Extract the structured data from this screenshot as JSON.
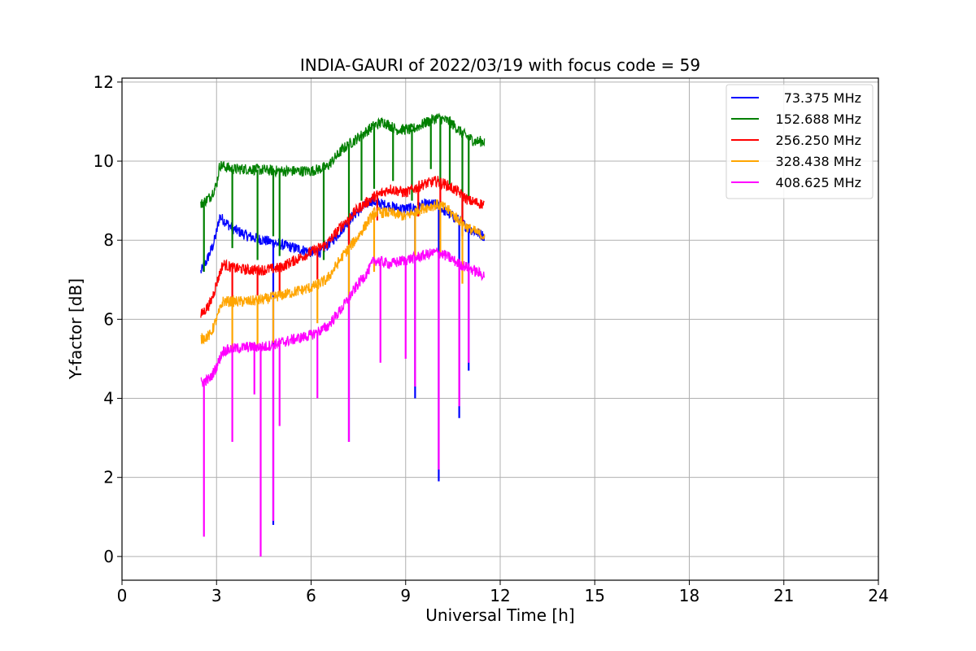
{
  "chart_data": {
    "type": "line",
    "title": "INDIA-GAURI of 2022/03/19 with focus code = 59",
    "xlabel": "Universal Time [h]",
    "ylabel": "Y-factor [dB]",
    "xlim": [
      0,
      24
    ],
    "ylim": [
      -0.6,
      12.1
    ],
    "xticks": [
      0,
      3,
      6,
      9,
      12,
      15,
      18,
      21,
      24
    ],
    "yticks": [
      0,
      2,
      4,
      6,
      8,
      10,
      12
    ],
    "grid": true,
    "legend_position": "top-right",
    "series": [
      {
        "name": "  73.375 MHz",
        "color": "#0000ff",
        "x": [
          2.5,
          2.7,
          2.9,
          3.0,
          3.1,
          3.5,
          4.0,
          4.5,
          5.0,
          5.5,
          6.0,
          6.3,
          6.8,
          7.3,
          7.6,
          7.9,
          8.3,
          8.8,
          9.2,
          9.6,
          10.0,
          10.3,
          10.7,
          11.0,
          11.5
        ],
        "y": [
          7.2,
          7.5,
          7.9,
          8.2,
          8.6,
          8.3,
          8.1,
          8.0,
          7.9,
          7.8,
          7.7,
          7.7,
          8.1,
          8.6,
          8.8,
          9.0,
          8.9,
          8.8,
          8.8,
          8.9,
          8.9,
          8.7,
          8.5,
          8.3,
          8.1
        ],
        "spikes": [
          [
            4.8,
            0.8
          ],
          [
            7.2,
            2.9
          ],
          [
            9.3,
            4.0
          ],
          [
            10.05,
            1.9
          ],
          [
            10.7,
            3.5
          ],
          [
            11.0,
            4.7
          ]
        ]
      },
      {
        "name": "152.688 MHz",
        "color": "#008000",
        "x": [
          2.5,
          2.8,
          3.0,
          3.1,
          3.5,
          4.0,
          5.0,
          6.0,
          6.5,
          7.0,
          7.5,
          8.0,
          8.3,
          8.7,
          9.2,
          9.7,
          10.0,
          10.4,
          10.8,
          11.2,
          11.5
        ],
        "y": [
          8.9,
          9.1,
          9.4,
          9.9,
          9.8,
          9.8,
          9.75,
          9.75,
          9.85,
          10.3,
          10.6,
          10.9,
          11.0,
          10.8,
          10.8,
          11.0,
          11.1,
          11.0,
          10.7,
          10.5,
          10.5
        ],
        "spikes": [
          [
            2.6,
            7.2
          ],
          [
            3.5,
            7.8
          ],
          [
            4.3,
            7.5
          ],
          [
            4.8,
            8.1
          ],
          [
            5.0,
            7.6
          ],
          [
            6.4,
            7.5
          ],
          [
            7.2,
            7.9
          ],
          [
            7.6,
            9.0
          ],
          [
            8.0,
            9.3
          ],
          [
            8.6,
            9.5
          ],
          [
            9.2,
            9.0
          ],
          [
            9.8,
            9.8
          ],
          [
            10.1,
            9.3
          ],
          [
            10.4,
            9.4
          ],
          [
            10.8,
            8.4
          ],
          [
            11.0,
            9.1
          ]
        ]
      },
      {
        "name": "256.250 MHz",
        "color": "#ff0000",
        "x": [
          2.5,
          2.8,
          3.0,
          3.2,
          3.5,
          4.0,
          4.5,
          5.0,
          5.5,
          6.0,
          6.5,
          7.0,
          7.5,
          8.0,
          8.5,
          9.0,
          9.5,
          10.0,
          10.3,
          10.7,
          11.0,
          11.5
        ],
        "y": [
          6.1,
          6.4,
          6.9,
          7.4,
          7.3,
          7.25,
          7.25,
          7.3,
          7.5,
          7.7,
          7.9,
          8.4,
          8.8,
          9.1,
          9.3,
          9.2,
          9.4,
          9.5,
          9.4,
          9.2,
          9.0,
          8.9
        ],
        "spikes": [
          [
            3.5,
            6.5
          ],
          [
            4.3,
            6.6
          ],
          [
            5.0,
            6.6
          ],
          [
            6.2,
            7.0
          ],
          [
            7.2,
            7.8
          ],
          [
            8.1,
            8.5
          ],
          [
            9.4,
            8.6
          ],
          [
            10.1,
            8.9
          ],
          [
            10.8,
            8.1
          ]
        ]
      },
      {
        "name": "328.438 MHz",
        "color": "#ffa500",
        "x": [
          2.5,
          2.8,
          3.0,
          3.2,
          3.5,
          4.0,
          4.5,
          5.0,
          5.5,
          6.0,
          6.5,
          7.0,
          7.5,
          8.0,
          8.5,
          9.0,
          9.5,
          10.0,
          10.3,
          10.7,
          11.0,
          11.5
        ],
        "y": [
          5.5,
          5.6,
          6.0,
          6.45,
          6.45,
          6.45,
          6.5,
          6.6,
          6.7,
          6.8,
          7.0,
          7.6,
          8.1,
          8.7,
          8.7,
          8.6,
          8.8,
          8.9,
          8.8,
          8.5,
          8.3,
          8.1
        ],
        "spikes": [
          [
            3.5,
            5.2
          ],
          [
            4.3,
            5.3
          ],
          [
            4.8,
            5.4
          ],
          [
            6.2,
            5.9
          ],
          [
            7.2,
            6.3
          ],
          [
            8.0,
            7.2
          ],
          [
            9.3,
            7.5
          ],
          [
            10.1,
            7.6
          ],
          [
            10.8,
            6.9
          ]
        ]
      },
      {
        "name": "408.625 MHz",
        "color": "#ff00ff",
        "x": [
          2.5,
          2.8,
          3.0,
          3.2,
          3.5,
          4.0,
          4.5,
          5.0,
          5.5,
          6.0,
          6.5,
          7.0,
          7.5,
          7.8,
          8.0,
          8.5,
          9.0,
          9.5,
          10.0,
          10.3,
          10.7,
          11.0,
          11.5
        ],
        "y": [
          4.4,
          4.5,
          4.8,
          5.2,
          5.25,
          5.3,
          5.3,
          5.4,
          5.5,
          5.6,
          5.8,
          6.3,
          6.9,
          7.2,
          7.5,
          7.4,
          7.5,
          7.6,
          7.7,
          7.6,
          7.4,
          7.3,
          7.1
        ],
        "spikes": [
          [
            2.6,
            0.5
          ],
          [
            3.5,
            2.9
          ],
          [
            4.2,
            4.1
          ],
          [
            4.4,
            0.0
          ],
          [
            4.8,
            0.9
          ],
          [
            5.0,
            3.3
          ],
          [
            6.2,
            4.0
          ],
          [
            7.2,
            2.9
          ],
          [
            8.2,
            4.9
          ],
          [
            9.0,
            5.0
          ],
          [
            9.3,
            4.3
          ],
          [
            10.05,
            2.2
          ],
          [
            10.7,
            3.8
          ],
          [
            11.0,
            4.9
          ]
        ]
      }
    ]
  }
}
